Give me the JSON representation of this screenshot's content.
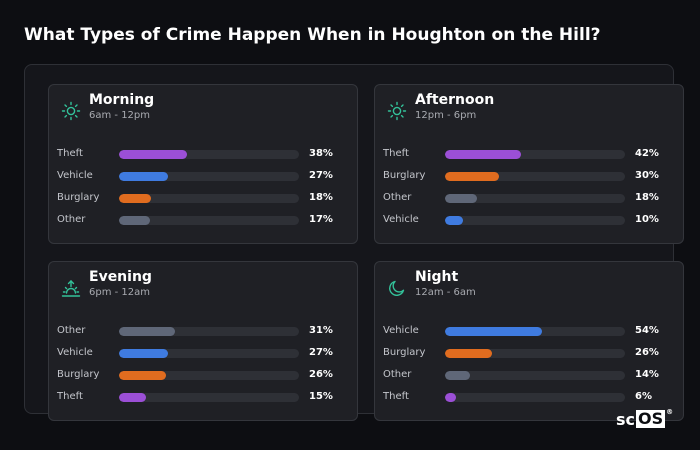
{
  "title": "What Types of Crime Happen When in Houghton on the Hill?",
  "logo": {
    "left": "sc",
    "box": "OS",
    "mark": "®"
  },
  "colors": {
    "Theft": "#9b4fd6",
    "Vehicle": "#3f7be0",
    "Burglary": "#e06c1f",
    "Other": "#5f6778",
    "icon": "#33c29a"
  },
  "chart_data": [
    {
      "type": "bar",
      "title": "Morning",
      "subtitle": "6am - 12pm",
      "icon": "sun-icon",
      "categories": [
        "Theft",
        "Vehicle",
        "Burglary",
        "Other"
      ],
      "values": [
        38,
        27,
        18,
        17
      ],
      "value_labels": [
        "38%",
        "27%",
        "18%",
        "17%"
      ],
      "xlim": [
        0,
        100
      ]
    },
    {
      "type": "bar",
      "title": "Afternoon",
      "subtitle": "12pm - 6pm",
      "icon": "sun-icon",
      "categories": [
        "Theft",
        "Burglary",
        "Other",
        "Vehicle"
      ],
      "values": [
        42,
        30,
        18,
        10
      ],
      "value_labels": [
        "42%",
        "30%",
        "18%",
        "10%"
      ],
      "xlim": [
        0,
        100
      ]
    },
    {
      "type": "bar",
      "title": "Evening",
      "subtitle": "6pm - 12am",
      "icon": "sunset-icon",
      "categories": [
        "Other",
        "Vehicle",
        "Burglary",
        "Theft"
      ],
      "values": [
        31,
        27,
        26,
        15
      ],
      "value_labels": [
        "31%",
        "27%",
        "26%",
        "15%"
      ],
      "xlim": [
        0,
        100
      ]
    },
    {
      "type": "bar",
      "title": "Night",
      "subtitle": "12am - 6am",
      "icon": "moon-icon",
      "categories": [
        "Vehicle",
        "Burglary",
        "Other",
        "Theft"
      ],
      "values": [
        54,
        26,
        14,
        6
      ],
      "value_labels": [
        "54%",
        "26%",
        "14%",
        "6%"
      ],
      "xlim": [
        0,
        100
      ]
    }
  ]
}
